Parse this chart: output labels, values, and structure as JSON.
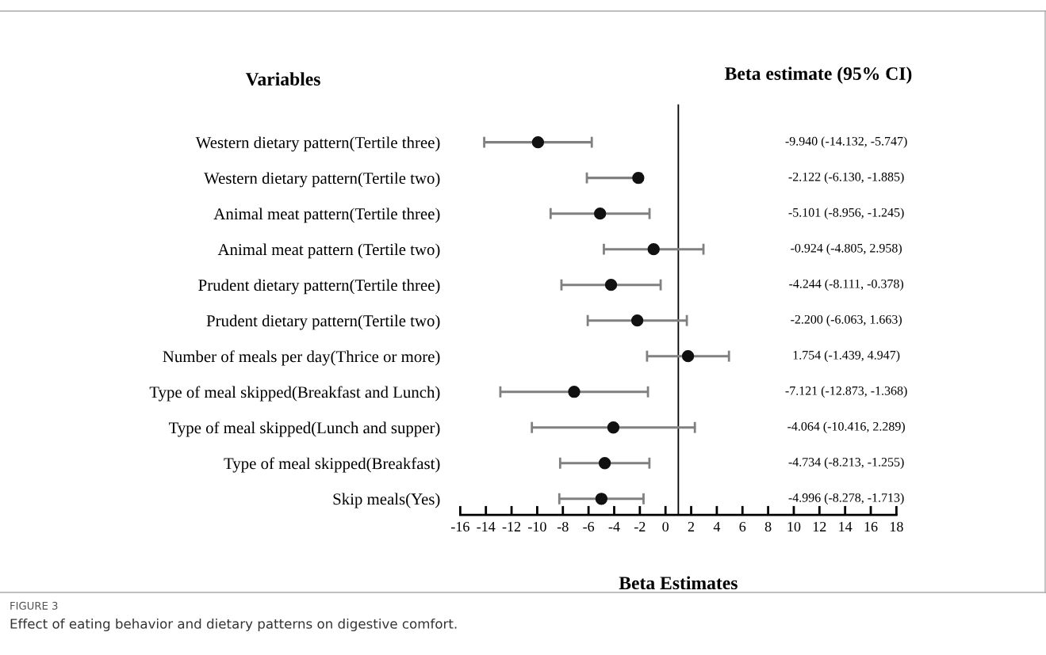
{
  "chart_data": {
    "type": "scatter",
    "title": "Beta estimate (95% CI)",
    "subtitle": "Variables",
    "xlabel": "Beta Estimates",
    "orientation": "horizontal",
    "categories": [
      "Western dietary pattern(Tertile three)",
      "Western dietary pattern(Tertile two)",
      "Animal meat pattern(Tertile three)",
      "Animal meat pattern (Tertile two)",
      "Prudent dietary pattern(Tertile three)",
      "Prudent dietary pattern(Tertile two)",
      "Number of meals per day(Thrice or more)",
      "Type of meal skipped(Breakfast and Lunch)",
      "Type of meal skipped(Lunch and supper)",
      "Type of meal skipped(Breakfast)",
      "Skip meals(Yes)"
    ],
    "series": [
      {
        "color": "#111111",
        "values": [
          -9.94,
          -2.122,
          -5.101,
          -0.924,
          -4.244,
          -2.2,
          1.754,
          -7.121,
          -4.064,
          -4.734,
          -4.996
        ],
        "errors": [
          [
            -14.132,
            -5.747
          ],
          [
            -6.13,
            -1.885
          ],
          [
            -8.956,
            -1.245
          ],
          [
            -4.805,
            2.958
          ],
          [
            -8.111,
            -0.378
          ],
          [
            -6.063,
            1.663
          ],
          [
            -1.439,
            4.947
          ],
          [
            -12.873,
            -1.368
          ],
          [
            -10.416,
            2.289
          ],
          [
            -8.213,
            -1.255
          ],
          [
            -8.278,
            -1.713
          ]
        ]
      }
    ],
    "xlim": [
      -16,
      18
    ],
    "xticks": [
      -16,
      -14,
      -12,
      -10,
      -8,
      -6,
      -4,
      -2,
      0,
      2,
      4,
      6,
      8,
      10,
      12,
      14,
      16,
      18
    ],
    "ref_lines": [
      {
        "axis": "x",
        "value": 1,
        "color": "#000000"
      }
    ],
    "marker": "circle",
    "annotations": [
      "-9.940 (-14.132, -5.747)",
      "-2.122 (-6.130, -1.885)",
      "-5.101 (-8.956, -1.245)",
      "-0.924 (-4.805, 2.958)",
      "-4.244 (-8.111, -0.378)",
      "-2.200 (-6.063, 1.663)",
      "1.754 (-1.439, 4.947)",
      "-7.121 (-12.873, -1.368)",
      "-4.064 (-10.416, 2.289)",
      "-4.734 (-8.213, -1.255)",
      "-4.996 (-8.278, -1.713)",
      "FIGURE 3",
      "Effect of eating behavior and dietary patterns on digestive comfort."
    ]
  }
}
